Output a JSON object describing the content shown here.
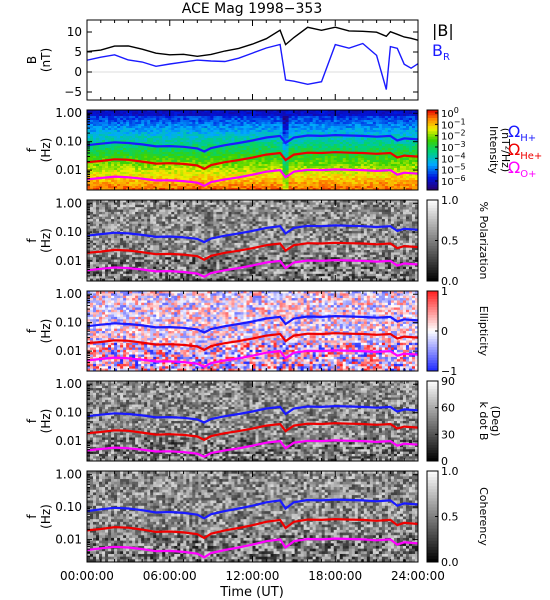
{
  "title": "ACE Mag 1998−353",
  "x_axis": {
    "label": "Time (UT)",
    "ticks": [
      "00:00:00",
      "06:00:00",
      "12:00:00",
      "18:00:00",
      "24:00:00"
    ],
    "range_hours": [
      0,
      24
    ]
  },
  "chart_data": [
    {
      "type": "line",
      "id": "field",
      "ylabel": [
        "B",
        "(nT)"
      ],
      "ylim": [
        -7,
        13
      ],
      "yticks": [
        {
          "v": 10,
          "t": "10"
        },
        {
          "v": 5,
          "t": "5"
        },
        {
          "v": 0,
          "t": "0"
        },
        {
          "v": -5,
          "t": "−5"
        }
      ],
      "legend": [
        {
          "text": "|B|",
          "color": "#000000"
        },
        {
          "text": "B",
          "sub": "R",
          "color": "#1a1aff"
        }
      ],
      "x_hours": [
        0,
        1,
        2,
        3,
        4,
        5,
        6,
        7,
        8,
        9,
        10,
        11,
        12,
        13,
        14,
        14.4,
        15,
        16,
        17,
        18,
        19,
        20,
        21,
        21.7,
        22,
        22.5,
        23,
        23.5,
        24
      ],
      "series": [
        {
          "name": "|B|",
          "color": "#000000",
          "values": [
            5.0,
            5.6,
            6.4,
            6.2,
            5.6,
            4.6,
            4.5,
            4.2,
            3.8,
            4.2,
            5.1,
            6.0,
            6.8,
            8.5,
            10.4,
            7.0,
            8.8,
            11.0,
            10.2,
            11.0,
            10.5,
            10.2,
            9.8,
            9.0,
            10.2,
            9.5,
            8.5,
            8.2,
            8.0
          ]
        },
        {
          "name": "B_R",
          "color": "#1a1aff",
          "values": [
            3.0,
            3.5,
            4.5,
            3.2,
            2.6,
            1.5,
            2.0,
            2.2,
            3.0,
            2.6,
            2.8,
            3.5,
            4.5,
            5.8,
            7.0,
            -2.0,
            -2.5,
            -3.2,
            -2.2,
            6.8,
            6.2,
            7.0,
            4.2,
            -4.5,
            6.5,
            6.0,
            2.0,
            1.0,
            1.8
          ]
        }
      ]
    },
    {
      "type": "heatmap",
      "id": "intensity",
      "ylabel": [
        "f",
        "(Hz)"
      ],
      "yscale": "log",
      "ylim": [
        0.002,
        1.3
      ],
      "yticks": [
        {
          "v": 1.0,
          "t": "1.00"
        },
        {
          "v": 0.1,
          "t": "0.10"
        },
        {
          "v": 0.01,
          "t": "0.01"
        }
      ],
      "colorbar": {
        "colormap": "rainbow",
        "label": [
          "Intensity",
          "(nT²/Hz)"
        ],
        "ticks": [
          {
            "b": "10",
            "e": "0"
          },
          {
            "b": "10",
            "e": "−1"
          },
          {
            "b": "10",
            "e": "−2"
          },
          {
            "b": "10",
            "e": "−3"
          },
          {
            "b": "10",
            "e": "−4"
          },
          {
            "b": "10",
            "e": "−5"
          },
          {
            "b": "10",
            "e": "−6"
          }
        ]
      },
      "side_legend": [
        {
          "text": "Ω",
          "sub": "H+",
          "color": "#1a1aff"
        },
        {
          "text": "Ω",
          "sub": "He+",
          "color": "#ee0000"
        },
        {
          "text": "Ω",
          "sub": "O+",
          "color": "#ff00ff"
        }
      ]
    },
    {
      "type": "heatmap",
      "id": "polarization",
      "ylabel": [
        "f",
        "(Hz)"
      ],
      "yscale": "log",
      "ylim": [
        0.002,
        1.3
      ],
      "yticks": [
        {
          "v": 1.0,
          "t": "1.00"
        },
        {
          "v": 0.1,
          "t": "0.10"
        },
        {
          "v": 0.01,
          "t": "0.01"
        }
      ],
      "colorbar": {
        "colormap": "gray",
        "label": [
          "% Polarization"
        ],
        "range": [
          0,
          1
        ],
        "ticks": [
          {
            "v": 1.0,
            "t": "1.0"
          },
          {
            "v": 0.5,
            "t": "0.5"
          },
          {
            "v": 0.0,
            "t": "0.0"
          }
        ]
      }
    },
    {
      "type": "heatmap",
      "id": "ellipticity",
      "ylabel": [
        "f",
        "(Hz)"
      ],
      "yscale": "log",
      "ylim": [
        0.002,
        1.3
      ],
      "yticks": [
        {
          "v": 1.0,
          "t": "1.00"
        },
        {
          "v": 0.1,
          "t": "0.10"
        },
        {
          "v": 0.01,
          "t": "0.01"
        }
      ],
      "colorbar": {
        "colormap": "bwr",
        "label": [
          "Ellipticity"
        ],
        "range": [
          -1,
          1
        ],
        "ticks": [
          {
            "v": 1,
            "t": "1"
          },
          {
            "v": 0,
            "t": "0"
          },
          {
            "v": -1,
            "t": "−1"
          }
        ]
      }
    },
    {
      "type": "heatmap",
      "id": "kdotb",
      "ylabel": [
        "f",
        "(Hz)"
      ],
      "yscale": "log",
      "ylim": [
        0.002,
        1.3
      ],
      "yticks": [
        {
          "v": 1.0,
          "t": "1.00"
        },
        {
          "v": 0.1,
          "t": "0.10"
        },
        {
          "v": 0.01,
          "t": "0.01"
        }
      ],
      "colorbar": {
        "colormap": "gray",
        "label": [
          "k dot B",
          "(Deg)"
        ],
        "range": [
          0,
          90
        ],
        "ticks": [
          {
            "v": 90,
            "t": "90"
          },
          {
            "v": 60,
            "t": "60"
          },
          {
            "v": 30,
            "t": "30"
          },
          {
            "v": 0,
            "t": "0"
          }
        ]
      }
    },
    {
      "type": "heatmap",
      "id": "coherency",
      "ylabel": [
        "f",
        "(Hz)"
      ],
      "yscale": "log",
      "ylim": [
        0.002,
        1.3
      ],
      "yticks": [
        {
          "v": 1.0,
          "t": "1.00"
        },
        {
          "v": 0.1,
          "t": "0.10"
        },
        {
          "v": 0.01,
          "t": "0.01"
        }
      ],
      "colorbar": {
        "colormap": "gray",
        "label": [
          "Coherency"
        ],
        "range": [
          0,
          1
        ],
        "ticks": [
          {
            "v": 1.0,
            "t": "1.0"
          },
          {
            "v": 0.5,
            "t": "0.5"
          },
          {
            "v": 0.0,
            "t": "0.0"
          }
        ]
      }
    }
  ],
  "gyrofrequency_lines": {
    "x_hours": [
      0,
      1,
      2,
      3,
      4,
      5,
      6,
      7,
      8,
      8.5,
      9,
      10,
      11,
      12,
      13,
      14,
      14.4,
      15,
      16,
      17,
      18,
      19,
      20,
      21,
      22,
      22.5,
      23,
      24
    ],
    "series": [
      {
        "name": "ΩH+",
        "color": "#1a1aff",
        "values_hz": [
          0.075,
          0.085,
          0.095,
          0.09,
          0.08,
          0.068,
          0.07,
          0.066,
          0.058,
          0.045,
          0.06,
          0.075,
          0.09,
          0.11,
          0.14,
          0.16,
          0.09,
          0.14,
          0.165,
          0.16,
          0.17,
          0.165,
          0.16,
          0.15,
          0.16,
          0.11,
          0.13,
          0.12
        ]
      },
      {
        "name": "ΩHe+",
        "color": "#ee0000",
        "values_hz": [
          0.019,
          0.021,
          0.024,
          0.023,
          0.02,
          0.017,
          0.0175,
          0.0165,
          0.0145,
          0.011,
          0.015,
          0.019,
          0.0225,
          0.0275,
          0.035,
          0.04,
          0.0225,
          0.035,
          0.041,
          0.04,
          0.0425,
          0.041,
          0.04,
          0.0375,
          0.04,
          0.0275,
          0.0325,
          0.03
        ]
      },
      {
        "name": "ΩO+",
        "color": "#ff00ff",
        "values_hz": [
          0.0047,
          0.0053,
          0.0059,
          0.0056,
          0.005,
          0.0043,
          0.0044,
          0.0041,
          0.0036,
          0.0028,
          0.0038,
          0.0047,
          0.0056,
          0.0069,
          0.0088,
          0.01,
          0.0056,
          0.0088,
          0.0103,
          0.01,
          0.0106,
          0.0103,
          0.01,
          0.0094,
          0.01,
          0.0069,
          0.0081,
          0.0075
        ]
      }
    ]
  }
}
